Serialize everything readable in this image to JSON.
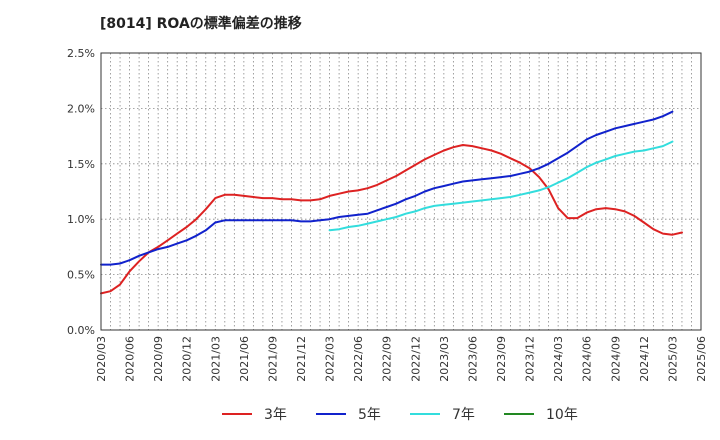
{
  "chart_data": {
    "type": "line",
    "title": "[8014]  ROAの標準偏差の推移",
    "xlabel": "",
    "ylabel": "",
    "ylim": [
      0,
      2.5
    ],
    "y_ticks": [
      "0.0%",
      "0.5%",
      "1.0%",
      "1.5%",
      "2.0%",
      "2.5%"
    ],
    "x_ticks": [
      "2020/03",
      "2020/06",
      "2020/09",
      "2020/12",
      "2021/03",
      "2021/06",
      "2021/09",
      "2021/12",
      "2022/03",
      "2022/06",
      "2022/09",
      "2022/12",
      "2023/03",
      "2023/06",
      "2023/09",
      "2023/12",
      "2024/03",
      "2024/06",
      "2024/09",
      "2024/12",
      "2025/03",
      "2025/06"
    ],
    "grid": true,
    "legend_position": "bottom",
    "series": [
      {
        "name": "3年",
        "color": "#dd2222",
        "points": [
          [
            "2020/03",
            0.33
          ],
          [
            "2020/04",
            0.35
          ],
          [
            "2020/05",
            0.41
          ],
          [
            "2020/06",
            0.53
          ],
          [
            "2020/07",
            0.62
          ],
          [
            "2020/08",
            0.7
          ],
          [
            "2020/09",
            0.75
          ],
          [
            "2020/10",
            0.81
          ],
          [
            "2020/11",
            0.87
          ],
          [
            "2020/12",
            0.93
          ],
          [
            "2021/01",
            1.0
          ],
          [
            "2021/02",
            1.09
          ],
          [
            "2021/03",
            1.19
          ],
          [
            "2021/04",
            1.22
          ],
          [
            "2021/05",
            1.22
          ],
          [
            "2021/06",
            1.21
          ],
          [
            "2021/07",
            1.2
          ],
          [
            "2021/08",
            1.19
          ],
          [
            "2021/09",
            1.19
          ],
          [
            "2021/10",
            1.18
          ],
          [
            "2021/11",
            1.18
          ],
          [
            "2021/12",
            1.17
          ],
          [
            "2022/01",
            1.17
          ],
          [
            "2022/02",
            1.18
          ],
          [
            "2022/03",
            1.21
          ],
          [
            "2022/04",
            1.23
          ],
          [
            "2022/05",
            1.25
          ],
          [
            "2022/06",
            1.26
          ],
          [
            "2022/07",
            1.28
          ],
          [
            "2022/08",
            1.31
          ],
          [
            "2022/09",
            1.35
          ],
          [
            "2022/10",
            1.39
          ],
          [
            "2022/11",
            1.44
          ],
          [
            "2022/12",
            1.49
          ],
          [
            "2023/01",
            1.54
          ],
          [
            "2023/02",
            1.58
          ],
          [
            "2023/03",
            1.62
          ],
          [
            "2023/04",
            1.65
          ],
          [
            "2023/05",
            1.67
          ],
          [
            "2023/06",
            1.66
          ],
          [
            "2023/07",
            1.64
          ],
          [
            "2023/08",
            1.62
          ],
          [
            "2023/09",
            1.59
          ],
          [
            "2023/10",
            1.55
          ],
          [
            "2023/11",
            1.51
          ],
          [
            "2023/12",
            1.46
          ],
          [
            "2024/01",
            1.38
          ],
          [
            "2024/02",
            1.27
          ],
          [
            "2024/03",
            1.1
          ],
          [
            "2024/04",
            1.01
          ],
          [
            "2024/05",
            1.01
          ],
          [
            "2024/06",
            1.06
          ],
          [
            "2024/07",
            1.09
          ],
          [
            "2024/08",
            1.1
          ],
          [
            "2024/09",
            1.09
          ],
          [
            "2024/10",
            1.07
          ],
          [
            "2024/11",
            1.03
          ],
          [
            "2024/12",
            0.97
          ],
          [
            "2025/01",
            0.91
          ],
          [
            "2025/02",
            0.87
          ],
          [
            "2025/03",
            0.86
          ],
          [
            "2025/04",
            0.88
          ]
        ]
      },
      {
        "name": "5年",
        "color": "#1122cc",
        "points": [
          [
            "2020/03",
            0.59
          ],
          [
            "2020/04",
            0.59
          ],
          [
            "2020/05",
            0.6
          ],
          [
            "2020/06",
            0.63
          ],
          [
            "2020/07",
            0.67
          ],
          [
            "2020/08",
            0.7
          ],
          [
            "2020/09",
            0.73
          ],
          [
            "2020/10",
            0.75
          ],
          [
            "2020/11",
            0.78
          ],
          [
            "2020/12",
            0.81
          ],
          [
            "2021/01",
            0.85
          ],
          [
            "2021/02",
            0.9
          ],
          [
            "2021/03",
            0.97
          ],
          [
            "2021/04",
            0.99
          ],
          [
            "2021/05",
            0.99
          ],
          [
            "2021/06",
            0.99
          ],
          [
            "2021/07",
            0.99
          ],
          [
            "2021/08",
            0.99
          ],
          [
            "2021/09",
            0.99
          ],
          [
            "2021/10",
            0.99
          ],
          [
            "2021/11",
            0.99
          ],
          [
            "2021/12",
            0.98
          ],
          [
            "2022/01",
            0.98
          ],
          [
            "2022/02",
            0.99
          ],
          [
            "2022/03",
            1.0
          ],
          [
            "2022/04",
            1.02
          ],
          [
            "2022/05",
            1.03
          ],
          [
            "2022/06",
            1.04
          ],
          [
            "2022/07",
            1.05
          ],
          [
            "2022/08",
            1.08
          ],
          [
            "2022/09",
            1.11
          ],
          [
            "2022/10",
            1.14
          ],
          [
            "2022/11",
            1.18
          ],
          [
            "2022/12",
            1.21
          ],
          [
            "2023/01",
            1.25
          ],
          [
            "2023/02",
            1.28
          ],
          [
            "2023/03",
            1.3
          ],
          [
            "2023/04",
            1.32
          ],
          [
            "2023/05",
            1.34
          ],
          [
            "2023/06",
            1.35
          ],
          [
            "2023/07",
            1.36
          ],
          [
            "2023/08",
            1.37
          ],
          [
            "2023/09",
            1.38
          ],
          [
            "2023/10",
            1.39
          ],
          [
            "2023/11",
            1.41
          ],
          [
            "2023/12",
            1.43
          ],
          [
            "2024/01",
            1.46
          ],
          [
            "2024/02",
            1.5
          ],
          [
            "2024/03",
            1.55
          ],
          [
            "2024/04",
            1.6
          ],
          [
            "2024/05",
            1.66
          ],
          [
            "2024/06",
            1.72
          ],
          [
            "2024/07",
            1.76
          ],
          [
            "2024/08",
            1.79
          ],
          [
            "2024/09",
            1.82
          ],
          [
            "2024/10",
            1.84
          ],
          [
            "2024/11",
            1.86
          ],
          [
            "2024/12",
            1.88
          ],
          [
            "2025/01",
            1.9
          ],
          [
            "2025/02",
            1.93
          ],
          [
            "2025/03",
            1.97
          ]
        ]
      },
      {
        "name": "7年",
        "color": "#33dddd",
        "points": [
          [
            "2022/03",
            0.9
          ],
          [
            "2022/04",
            0.91
          ],
          [
            "2022/05",
            0.93
          ],
          [
            "2022/06",
            0.94
          ],
          [
            "2022/07",
            0.96
          ],
          [
            "2022/08",
            0.98
          ],
          [
            "2022/09",
            1.0
          ],
          [
            "2022/10",
            1.02
          ],
          [
            "2022/11",
            1.05
          ],
          [
            "2022/12",
            1.07
          ],
          [
            "2023/01",
            1.1
          ],
          [
            "2023/02",
            1.12
          ],
          [
            "2023/03",
            1.13
          ],
          [
            "2023/04",
            1.14
          ],
          [
            "2023/05",
            1.15
          ],
          [
            "2023/06",
            1.16
          ],
          [
            "2023/07",
            1.17
          ],
          [
            "2023/08",
            1.18
          ],
          [
            "2023/09",
            1.19
          ],
          [
            "2023/10",
            1.2
          ],
          [
            "2023/11",
            1.22
          ],
          [
            "2023/12",
            1.24
          ],
          [
            "2024/01",
            1.26
          ],
          [
            "2024/02",
            1.29
          ],
          [
            "2024/03",
            1.33
          ],
          [
            "2024/04",
            1.37
          ],
          [
            "2024/05",
            1.42
          ],
          [
            "2024/06",
            1.47
          ],
          [
            "2024/07",
            1.51
          ],
          [
            "2024/08",
            1.54
          ],
          [
            "2024/09",
            1.57
          ],
          [
            "2024/10",
            1.59
          ],
          [
            "2024/11",
            1.61
          ],
          [
            "2024/12",
            1.62
          ],
          [
            "2025/01",
            1.64
          ],
          [
            "2025/02",
            1.66
          ],
          [
            "2025/03",
            1.7
          ]
        ]
      },
      {
        "name": "10年",
        "color": "#228822",
        "points": []
      }
    ]
  }
}
